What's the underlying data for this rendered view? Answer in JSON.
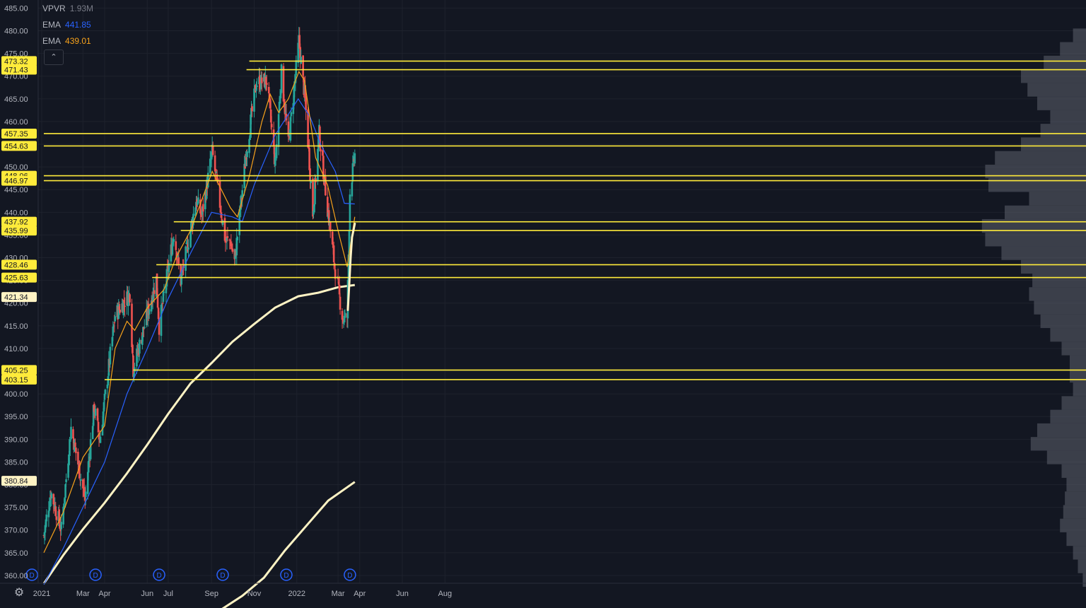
{
  "legend": {
    "vpvr": {
      "name": "VPVR",
      "value": "1.93M"
    },
    "ema1": {
      "name": "EMA",
      "value": "441.85"
    },
    "ema2": {
      "name": "EMA",
      "value": "439.01"
    }
  },
  "collapse_icon": "chevron-up-icon",
  "settings_icon": "gear-icon",
  "colors": {
    "background": "#131722",
    "grid": "#1e222d",
    "up": "#26a69a",
    "down": "#ef5350",
    "ema_fast": "#f7a21b",
    "ema_slow": "#2962ff",
    "sma": "#fff3c4",
    "level": "#ffeb3b",
    "vpvr": "#5d606b"
  },
  "chart_data": {
    "type": "candlestick",
    "y_axis": {
      "range": [
        357.5,
        486
      ],
      "ticks": [
        "485.00",
        "480.00",
        "475.00",
        "470.00",
        "465.00",
        "460.00",
        "455.00",
        "450.00",
        "445.00",
        "440.00",
        "435.00",
        "430.00",
        "425.00",
        "420.00",
        "415.00",
        "410.00",
        "405.00",
        "400.00",
        "395.00",
        "390.00",
        "385.00",
        "380.00",
        "375.00",
        "370.00",
        "365.00",
        "360.00"
      ]
    },
    "x_axis": {
      "labels": [
        "2021",
        "Mar",
        "Apr",
        "Jun",
        "Jul",
        "Sep",
        "Nov",
        "2022",
        "Mar",
        "Apr",
        "Jun",
        "Aug"
      ]
    },
    "price_labels": [
      {
        "label": "473.32",
        "value": 473.32
      },
      {
        "label": "471.43",
        "value": 471.43
      },
      {
        "label": "457.35",
        "value": 457.35
      },
      {
        "label": "454.63",
        "value": 454.63
      },
      {
        "label": "448.06",
        "value": 448.06
      },
      {
        "label": "446.97",
        "value": 446.97
      },
      {
        "label": "437.92",
        "value": 437.92
      },
      {
        "label": "435.99",
        "value": 435.99
      },
      {
        "label": "428.46",
        "value": 428.46
      },
      {
        "label": "425.63",
        "value": 425.63
      },
      {
        "label": "421.34",
        "value": 421.34
      },
      {
        "label": "405.25",
        "value": 405.25
      },
      {
        "label": "403.15",
        "value": 403.15
      },
      {
        "label": "380.84",
        "value": 380.84
      }
    ],
    "horizontal_levels": [
      {
        "value": 473.32,
        "from": "2021-10-25"
      },
      {
        "value": 471.43,
        "from": "2021-10-21"
      },
      {
        "value": 457.35,
        "from": "2021-01-04"
      },
      {
        "value": 454.63,
        "from": "2021-01-04"
      },
      {
        "value": 448.06,
        "from": "2021-01-04"
      },
      {
        "value": 446.97,
        "from": "2021-01-04"
      },
      {
        "value": 437.92,
        "from": "2021-07-09"
      },
      {
        "value": 435.99,
        "from": "2021-07-19"
      },
      {
        "value": 428.46,
        "from": "2021-06-14"
      },
      {
        "value": 425.63,
        "from": "2021-06-08"
      },
      {
        "value": 405.25,
        "from": "2021-05-12"
      },
      {
        "value": 403.15,
        "from": "2021-04-01"
      }
    ],
    "dividend_markers": [
      "2020-12-18",
      "2021-03-19",
      "2021-06-18",
      "2021-09-17",
      "2021-12-17",
      "2022-03-18"
    ],
    "sma_200": [
      {
        "date": "2021-01-04",
        "value": 358.2
      },
      {
        "date": "2021-02-01",
        "value": 364.5
      },
      {
        "date": "2021-03-01",
        "value": 370.2
      },
      {
        "date": "2021-04-01",
        "value": 376.0
      },
      {
        "date": "2021-05-03",
        "value": 382.5
      },
      {
        "date": "2021-06-01",
        "value": 388.8
      },
      {
        "date": "2021-07-01",
        "value": 395.6
      },
      {
        "date": "2021-08-02",
        "value": 402.3
      },
      {
        "date": "2021-09-01",
        "value": 406.8
      },
      {
        "date": "2021-10-01",
        "value": 411.5
      },
      {
        "date": "2021-11-01",
        "value": 415.4
      },
      {
        "date": "2021-12-01",
        "value": 419.0
      },
      {
        "date": "2022-01-03",
        "value": 421.5
      },
      {
        "date": "2022-02-01",
        "value": 422.3
      },
      {
        "date": "2022-03-01",
        "value": 423.5
      },
      {
        "date": "2022-03-25",
        "value": 424.0
      }
    ],
    "sma_200_lower": [
      {
        "date": "2021-09-10",
        "value": 352.0
      },
      {
        "date": "2021-10-15",
        "value": 355.5
      },
      {
        "date": "2021-11-15",
        "value": 359.5
      },
      {
        "date": "2021-12-15",
        "value": 365.5
      },
      {
        "date": "2022-01-15",
        "value": 371.0
      },
      {
        "date": "2022-02-15",
        "value": 376.5
      },
      {
        "date": "2022-03-25",
        "value": 380.6
      }
    ],
    "swoosh_annotation": [
      {
        "date": "2022-03-15",
        "value": 418.5
      },
      {
        "date": "2022-03-17",
        "value": 424.0
      },
      {
        "date": "2022-03-19",
        "value": 430.0
      },
      {
        "date": "2022-03-21",
        "value": 434.5
      },
      {
        "date": "2022-03-25",
        "value": 437.5
      }
    ],
    "key_points": [
      {
        "date": "2021-01-04",
        "close": 368.8
      },
      {
        "date": "2021-01-14",
        "close": 378.5
      },
      {
        "date": "2021-01-29",
        "close": 370.1
      },
      {
        "date": "2021-02-12",
        "close": 392.6
      },
      {
        "date": "2021-03-04",
        "close": 376.7
      },
      {
        "date": "2021-03-17",
        "close": 397.3
      },
      {
        "date": "2021-03-25",
        "close": 389.7
      },
      {
        "date": "2021-04-16",
        "close": 417.3
      },
      {
        "date": "2021-05-07",
        "close": 422.1
      },
      {
        "date": "2021-05-12",
        "close": 405.4
      },
      {
        "date": "2021-06-14",
        "close": 425.3
      },
      {
        "date": "2021-06-18",
        "close": 414.9
      },
      {
        "date": "2021-07-09",
        "close": 435.5
      },
      {
        "date": "2021-07-19",
        "close": 424.9
      },
      {
        "date": "2021-08-10",
        "close": 442.7
      },
      {
        "date": "2021-08-18",
        "close": 439.2
      },
      {
        "date": "2021-09-02",
        "close": 453.2
      },
      {
        "date": "2021-09-21",
        "close": 433.6
      },
      {
        "date": "2021-09-28",
        "close": 433.7
      },
      {
        "date": "2021-10-04",
        "close": 429.1
      },
      {
        "date": "2021-10-21",
        "close": 453.6
      },
      {
        "date": "2021-11-04",
        "close": 468.5
      },
      {
        "date": "2021-11-19",
        "close": 469.0
      },
      {
        "date": "2021-12-01",
        "close": 450.5
      },
      {
        "date": "2021-12-10",
        "close": 470.7
      },
      {
        "date": "2021-12-20",
        "close": 454.9
      },
      {
        "date": "2022-01-04",
        "close": 477.7
      },
      {
        "date": "2022-01-13",
        "close": 464.5
      },
      {
        "date": "2022-01-24",
        "close": 439.8
      },
      {
        "date": "2022-02-02",
        "close": 457.4
      },
      {
        "date": "2022-02-14",
        "close": 440.9
      },
      {
        "date": "2022-02-24",
        "close": 428.3
      },
      {
        "date": "2022-03-08",
        "close": 416.3
      },
      {
        "date": "2022-03-14",
        "close": 417.0
      },
      {
        "date": "2022-03-18",
        "close": 444.5
      },
      {
        "date": "2022-03-25",
        "close": 452.7
      }
    ],
    "ema_fast": [
      {
        "date": "2021-01-04",
        "value": 365
      },
      {
        "date": "2021-02-01",
        "value": 374
      },
      {
        "date": "2021-03-01",
        "value": 386
      },
      {
        "date": "2021-04-01",
        "value": 393
      },
      {
        "date": "2021-04-16",
        "value": 410
      },
      {
        "date": "2021-05-03",
        "value": 416
      },
      {
        "date": "2021-05-14",
        "value": 414
      },
      {
        "date": "2021-06-01",
        "value": 419
      },
      {
        "date": "2021-06-25",
        "value": 423
      },
      {
        "date": "2021-07-12",
        "value": 430
      },
      {
        "date": "2021-08-02",
        "value": 436
      },
      {
        "date": "2021-09-02",
        "value": 449
      },
      {
        "date": "2021-09-28",
        "value": 441
      },
      {
        "date": "2021-10-08",
        "value": 439
      },
      {
        "date": "2021-10-25",
        "value": 448
      },
      {
        "date": "2021-11-12",
        "value": 460
      },
      {
        "date": "2021-11-24",
        "value": 466
      },
      {
        "date": "2021-12-06",
        "value": 462
      },
      {
        "date": "2021-12-20",
        "value": 465
      },
      {
        "date": "2022-01-04",
        "value": 471
      },
      {
        "date": "2022-01-12",
        "value": 469
      },
      {
        "date": "2022-01-28",
        "value": 452
      },
      {
        "date": "2022-02-14",
        "value": 446
      },
      {
        "date": "2022-03-01",
        "value": 436
      },
      {
        "date": "2022-03-14",
        "value": 428
      },
      {
        "date": "2022-03-25",
        "value": 439.01
      }
    ],
    "ema_slow": [
      {
        "date": "2021-01-04",
        "value": 358
      },
      {
        "date": "2021-02-01",
        "value": 366
      },
      {
        "date": "2021-03-01",
        "value": 375
      },
      {
        "date": "2021-04-01",
        "value": 385
      },
      {
        "date": "2021-05-03",
        "value": 400
      },
      {
        "date": "2021-06-01",
        "value": 410
      },
      {
        "date": "2021-07-01",
        "value": 421
      },
      {
        "date": "2021-08-02",
        "value": 431
      },
      {
        "date": "2021-09-01",
        "value": 440
      },
      {
        "date": "2021-10-01",
        "value": 439
      },
      {
        "date": "2021-10-15",
        "value": 438
      },
      {
        "date": "2021-11-01",
        "value": 446
      },
      {
        "date": "2021-12-01",
        "value": 457
      },
      {
        "date": "2022-01-03",
        "value": 465
      },
      {
        "date": "2022-01-20",
        "value": 461
      },
      {
        "date": "2022-02-04",
        "value": 455
      },
      {
        "date": "2022-02-25",
        "value": 449
      },
      {
        "date": "2022-03-10",
        "value": 442
      },
      {
        "date": "2022-03-25",
        "value": 441.85
      }
    ],
    "volume_profile": [
      {
        "price": 359,
        "volume": 0.02
      },
      {
        "price": 362,
        "volume": 0.05
      },
      {
        "price": 365,
        "volume": 0.08
      },
      {
        "price": 368,
        "volume": 0.12
      },
      {
        "price": 371,
        "volume": 0.16
      },
      {
        "price": 374,
        "volume": 0.14
      },
      {
        "price": 377,
        "volume": 0.13
      },
      {
        "price": 380,
        "volume": 0.12
      },
      {
        "price": 383,
        "volume": 0.15
      },
      {
        "price": 386,
        "volume": 0.24
      },
      {
        "price": 389,
        "volume": 0.34
      },
      {
        "price": 392,
        "volume": 0.3
      },
      {
        "price": 395,
        "volume": 0.22
      },
      {
        "price": 398,
        "volume": 0.15
      },
      {
        "price": 401,
        "volume": 0.08
      },
      {
        "price": 404,
        "volume": 0.1
      },
      {
        "price": 407,
        "volume": 0.1
      },
      {
        "price": 410,
        "volume": 0.15
      },
      {
        "price": 413,
        "volume": 0.22
      },
      {
        "price": 416,
        "volume": 0.28
      },
      {
        "price": 419,
        "volume": 0.32
      },
      {
        "price": 422,
        "volume": 0.35
      },
      {
        "price": 425,
        "volume": 0.33
      },
      {
        "price": 428,
        "volume": 0.4
      },
      {
        "price": 431,
        "volume": 0.52
      },
      {
        "price": 434,
        "volume": 0.62
      },
      {
        "price": 437,
        "volume": 0.64
      },
      {
        "price": 440,
        "volume": 0.5
      },
      {
        "price": 443,
        "volume": 0.35
      },
      {
        "price": 446,
        "volume": 0.6
      },
      {
        "price": 449,
        "volume": 0.62
      },
      {
        "price": 452,
        "volume": 0.56
      },
      {
        "price": 455,
        "volume": 0.4
      },
      {
        "price": 458,
        "volume": 0.28
      },
      {
        "price": 461,
        "volume": 0.22
      },
      {
        "price": 464,
        "volume": 0.3
      },
      {
        "price": 467,
        "volume": 0.36
      },
      {
        "price": 470,
        "volume": 0.4
      },
      {
        "price": 473,
        "volume": 0.26
      },
      {
        "price": 476,
        "volume": 0.16
      },
      {
        "price": 479,
        "volume": 0.08
      }
    ]
  }
}
